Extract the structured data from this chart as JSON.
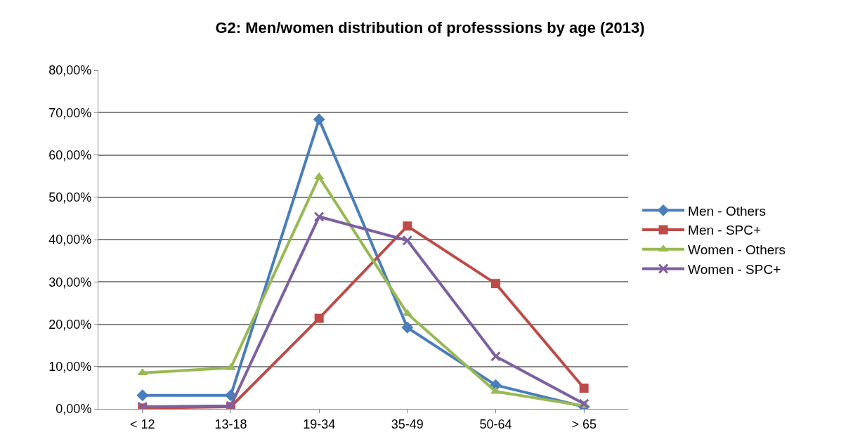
{
  "chart_data": {
    "type": "line",
    "title": "G2: Men/women distribution of professsions by age (2013)",
    "categories": [
      "< 12",
      "13-18",
      "19-34",
      "35-49",
      "50-64",
      "> 65"
    ],
    "series": [
      {
        "name": "Men - Others",
        "color": "#4a7ebb",
        "marker": "diamond",
        "values": [
          3.2,
          3.2,
          68.4,
          19.2,
          5.6,
          0.5
        ]
      },
      {
        "name": "Men - SPC+",
        "color": "#be4b48",
        "marker": "square",
        "values": [
          0.2,
          0.5,
          21.4,
          43.2,
          29.6,
          4.9
        ]
      },
      {
        "name": "Women - Others",
        "color": "#98b954",
        "marker": "triangle",
        "values": [
          8.5,
          9.7,
          54.8,
          22.5,
          4.1,
          0.7
        ]
      },
      {
        "name": "Women - SPC+",
        "color": "#7d60a0",
        "marker": "cross",
        "values": [
          0.5,
          0.7,
          45.4,
          39.8,
          12.4,
          1.2
        ]
      }
    ],
    "ylim": [
      0,
      80
    ],
    "yticks": [
      {
        "value": 0,
        "label": "0,00%"
      },
      {
        "value": 10,
        "label": "10,00%"
      },
      {
        "value": 20,
        "label": "20,00%"
      },
      {
        "value": 30,
        "label": "30,00%"
      },
      {
        "value": 40,
        "label": "40,00%"
      },
      {
        "value": 50,
        "label": "50,00%"
      },
      {
        "value": 60,
        "label": "60,00%"
      },
      {
        "value": 70,
        "label": "70,00%"
      },
      {
        "value": 80,
        "label": "80,00%"
      }
    ],
    "grid": "y",
    "legend": "right",
    "line_style": "solid"
  }
}
